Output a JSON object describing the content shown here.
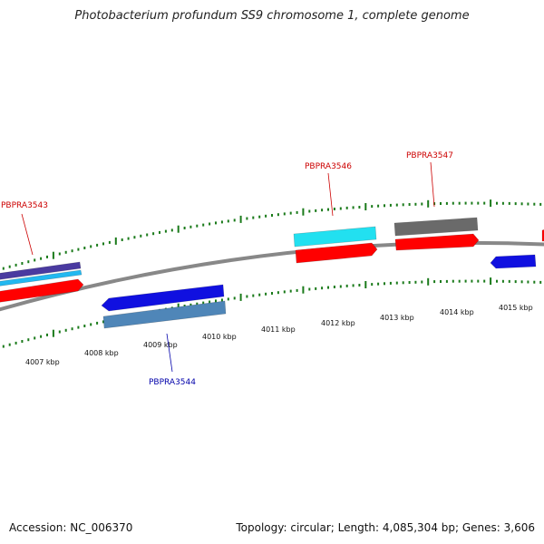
{
  "title": "Photobacterium profundum SS9 chromosome 1, complete genome",
  "footer": {
    "accession": "Accession: NC_006370",
    "summary": "Topology: circular; Length: 4,085,304 bp; Genes: 3,606"
  },
  "colors": {
    "backbone": "#888888",
    "tick": "#1a7a1a",
    "forward_label": "#cc0000",
    "reverse_label": "#0000aa",
    "red": "#ff0000",
    "blue": "#1010e0",
    "cyan": "#22e0f0",
    "steel": "#4f86b8",
    "gray": "#6a6a6a",
    "purple": "#4a3aa0",
    "lightblue": "#22b8f0"
  },
  "scale": {
    "labels": [
      "4007 kbp",
      "4008 kbp",
      "4009 kbp",
      "4010 kbp",
      "4011 kbp",
      "4012 kbp",
      "4013 kbp",
      "4014 kbp",
      "4015 kbp"
    ]
  },
  "genes": {
    "labeled": [
      {
        "name": "PBPRA3543",
        "strand": "forward"
      },
      {
        "name": "PBPRA3544",
        "strand": "reverse"
      },
      {
        "name": "PBPRA3546",
        "strand": "forward"
      },
      {
        "name": "PBPRA3547",
        "strand": "forward"
      }
    ]
  }
}
